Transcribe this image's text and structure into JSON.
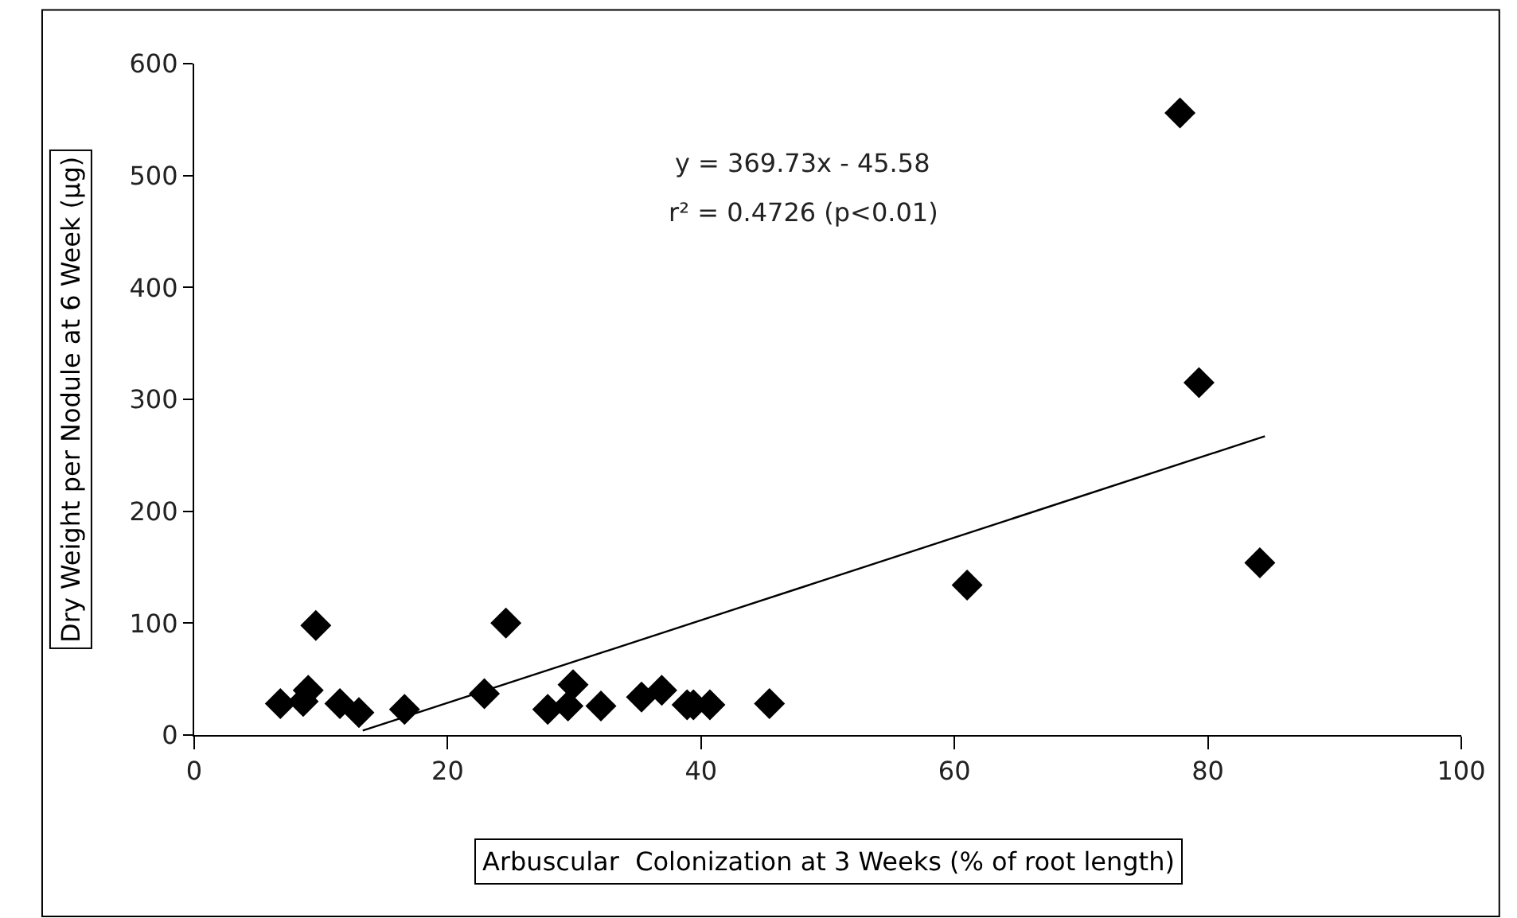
{
  "chart_data": {
    "type": "scatter",
    "xlabel": "Arbuscular  Colonization at 3 Weeks (% of root length)",
    "ylabel": "Dry Weight per Nodule at 6 Week (µg)",
    "xlim": [
      0,
      100
    ],
    "xticks": [
      0,
      20,
      40,
      60,
      80,
      100
    ],
    "ylim": [
      0,
      600
    ],
    "yticks": [
      0,
      100,
      200,
      300,
      400,
      500,
      600
    ],
    "series": [
      {
        "marker": "diamond",
        "color": "#000000",
        "x": [
          6.8,
          8.6,
          9.0,
          9.6,
          11.5,
          13.0,
          16.6,
          22.9,
          24.6,
          27.9,
          29.5,
          29.9,
          32.1,
          35.3,
          36.9,
          38.9,
          39.4,
          40.7,
          45.4,
          61.0,
          77.8,
          79.3,
          84.1
        ],
        "values": [
          28,
          30,
          40,
          98,
          28,
          20,
          23,
          37,
          100,
          23,
          26,
          45,
          26,
          34,
          40,
          27,
          27,
          27,
          28,
          134,
          556,
          315,
          154
        ]
      },
      {
        "type": "line",
        "color": "#000000",
        "x": [
          13.3,
          84.5
        ],
        "values": [
          4,
          267
        ]
      }
    ],
    "annotations": [
      "y = 369.73x - 45.58",
      "r² = 0.4726 (p<0.01)"
    ]
  }
}
